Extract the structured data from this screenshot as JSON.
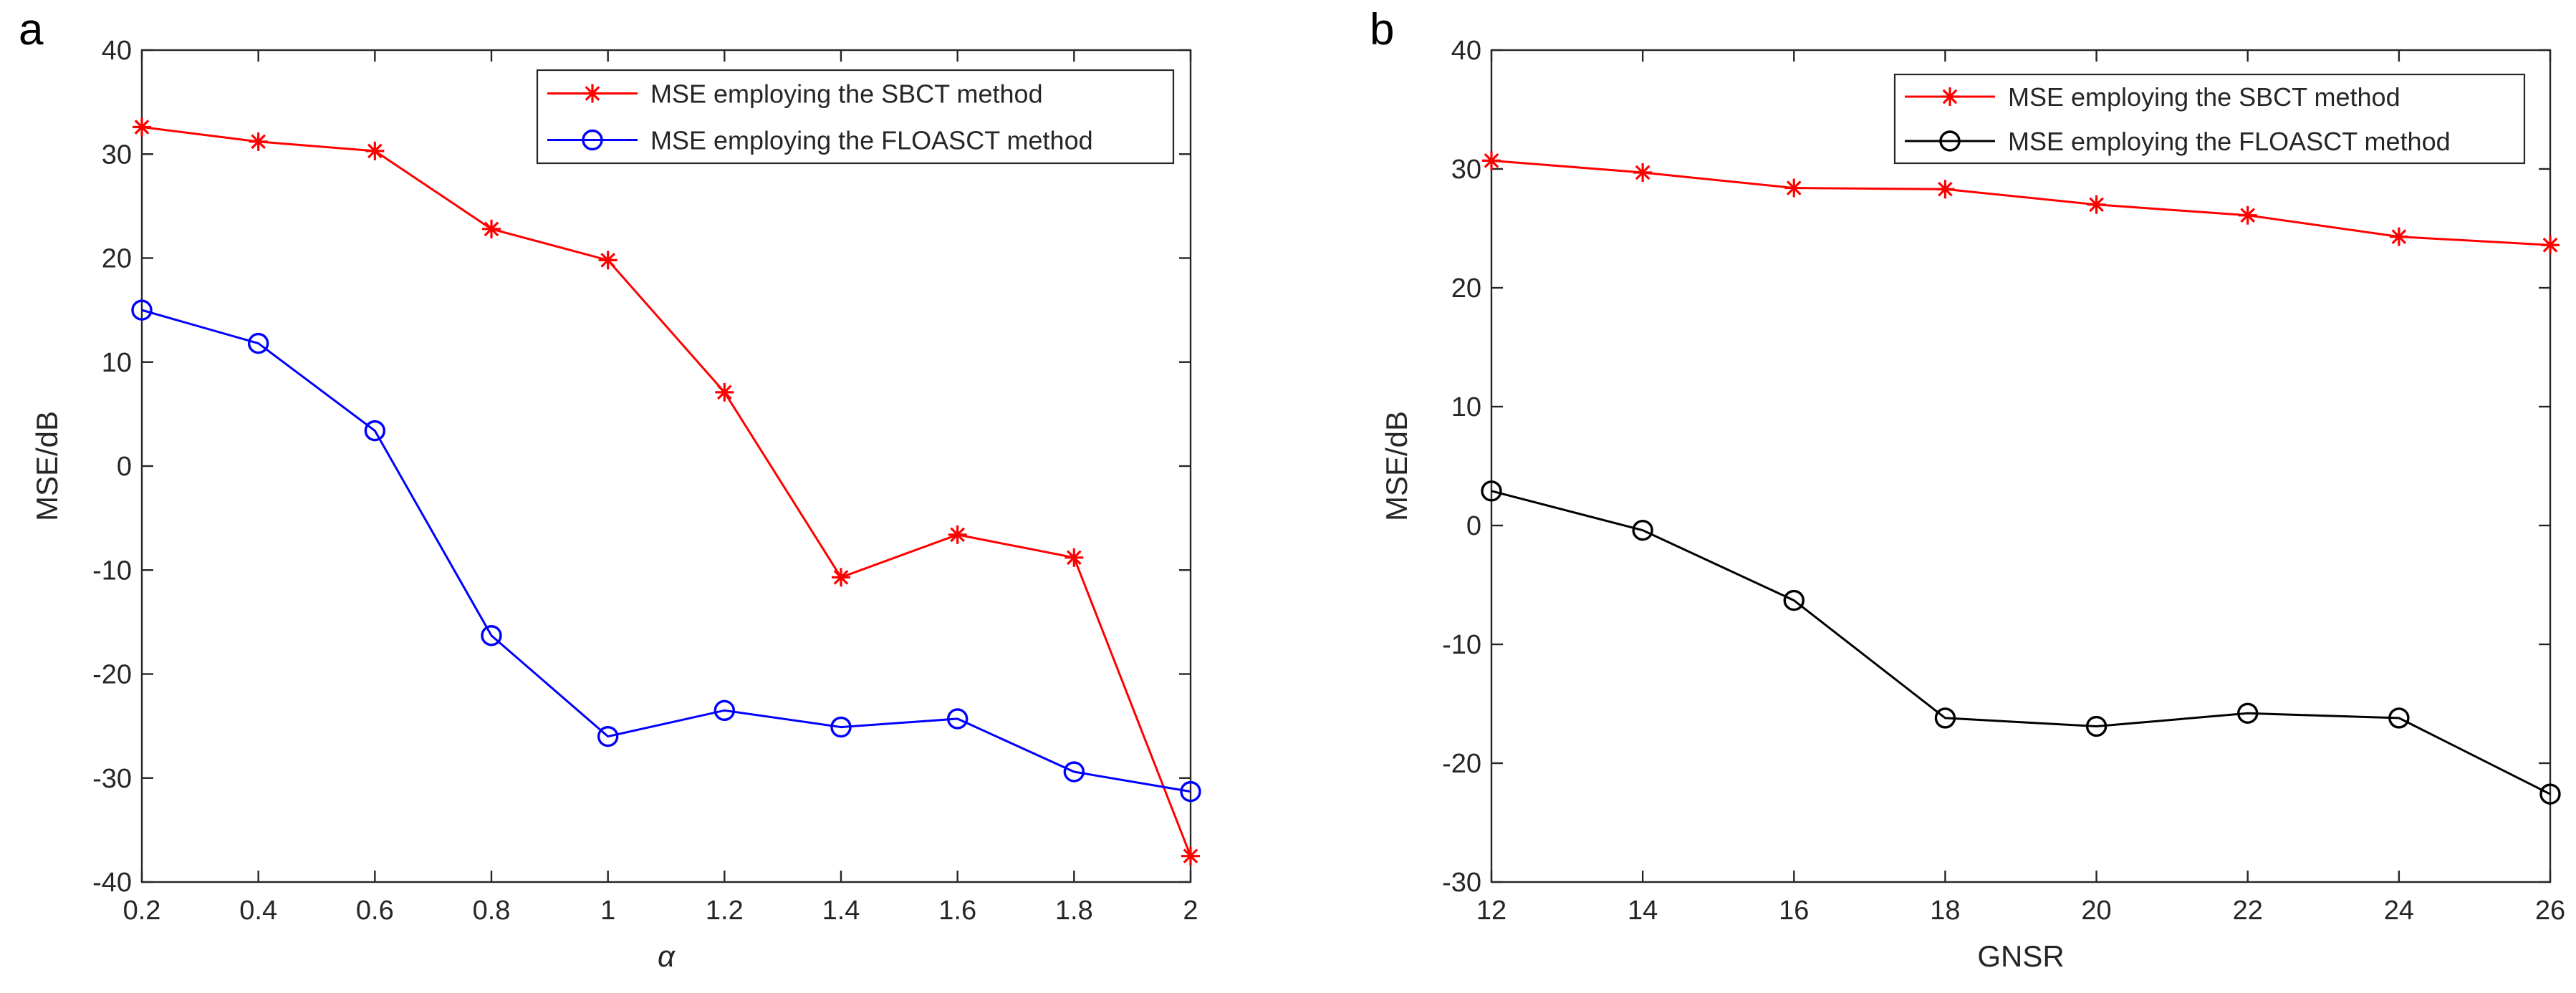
{
  "chart_data": [
    {
      "type": "line",
      "panel_label": "a",
      "xlabel": "α",
      "ylabel": "MSE/dB",
      "xlim": [
        0.2,
        2
      ],
      "ylim": [
        -40,
        40
      ],
      "xticks": [
        0.2,
        0.4,
        0.6,
        0.8,
        1,
        1.2,
        1.4,
        1.6,
        1.8,
        2
      ],
      "xtick_labels": [
        "0.2",
        "0.4",
        "0.6",
        "0.8",
        "1",
        "1.2",
        "1.4",
        "1.6",
        "1.8",
        "2"
      ],
      "yticks": [
        -40,
        -30,
        -20,
        -10,
        0,
        10,
        20,
        30,
        40
      ],
      "ytick_labels": [
        "-40",
        "-30",
        "-20",
        "-10",
        "0",
        "10",
        "20",
        "30",
        "40"
      ],
      "legend_position": "top-right",
      "x": [
        0.2,
        0.4,
        0.6,
        0.8,
        1.0,
        1.2,
        1.4,
        1.6,
        1.8,
        2.0
      ],
      "series": [
        {
          "name": "MSE employing the SBCT method",
          "color": "#ff0000",
          "marker": "asterisk",
          "values": [
            32.6,
            31.2,
            30.3,
            22.8,
            19.8,
            7.1,
            -10.7,
            -6.6,
            -8.8,
            -37.5
          ]
        },
        {
          "name": "MSE employing the FLOASCT method",
          "color": "#0000ff",
          "marker": "circle",
          "values": [
            15.0,
            11.8,
            3.4,
            -16.3,
            -26.0,
            -23.5,
            -25.1,
            -24.3,
            -29.4,
            -31.3
          ]
        }
      ]
    },
    {
      "type": "line",
      "panel_label": "b",
      "xlabel": "GNSR",
      "ylabel": "MSE/dB",
      "xlim": [
        12,
        26
      ],
      "ylim": [
        -30,
        40
      ],
      "xticks": [
        12,
        14,
        16,
        18,
        20,
        22,
        24,
        26
      ],
      "xtick_labels": [
        "12",
        "14",
        "16",
        "18",
        "20",
        "22",
        "24",
        "26"
      ],
      "yticks": [
        -30,
        -20,
        -10,
        0,
        10,
        20,
        30,
        40
      ],
      "ytick_labels": [
        "-30",
        "-20",
        "-10",
        "0",
        "10",
        "20",
        "30",
        "40"
      ],
      "legend_position": "top-right",
      "x": [
        12,
        14,
        16,
        18,
        20,
        22,
        24,
        26
      ],
      "series": [
        {
          "name": "MSE employing the SBCT method",
          "color": "#ff0000",
          "marker": "asterisk",
          "values": [
            30.7,
            29.7,
            28.4,
            28.3,
            27.0,
            26.1,
            24.3,
            23.6
          ]
        },
        {
          "name": "MSE employing the FLOASCT method",
          "color": "#000000",
          "marker": "circle",
          "values": [
            2.9,
            -0.4,
            -6.3,
            -16.2,
            -16.9,
            -15.8,
            -16.2,
            -22.6
          ]
        }
      ]
    }
  ]
}
